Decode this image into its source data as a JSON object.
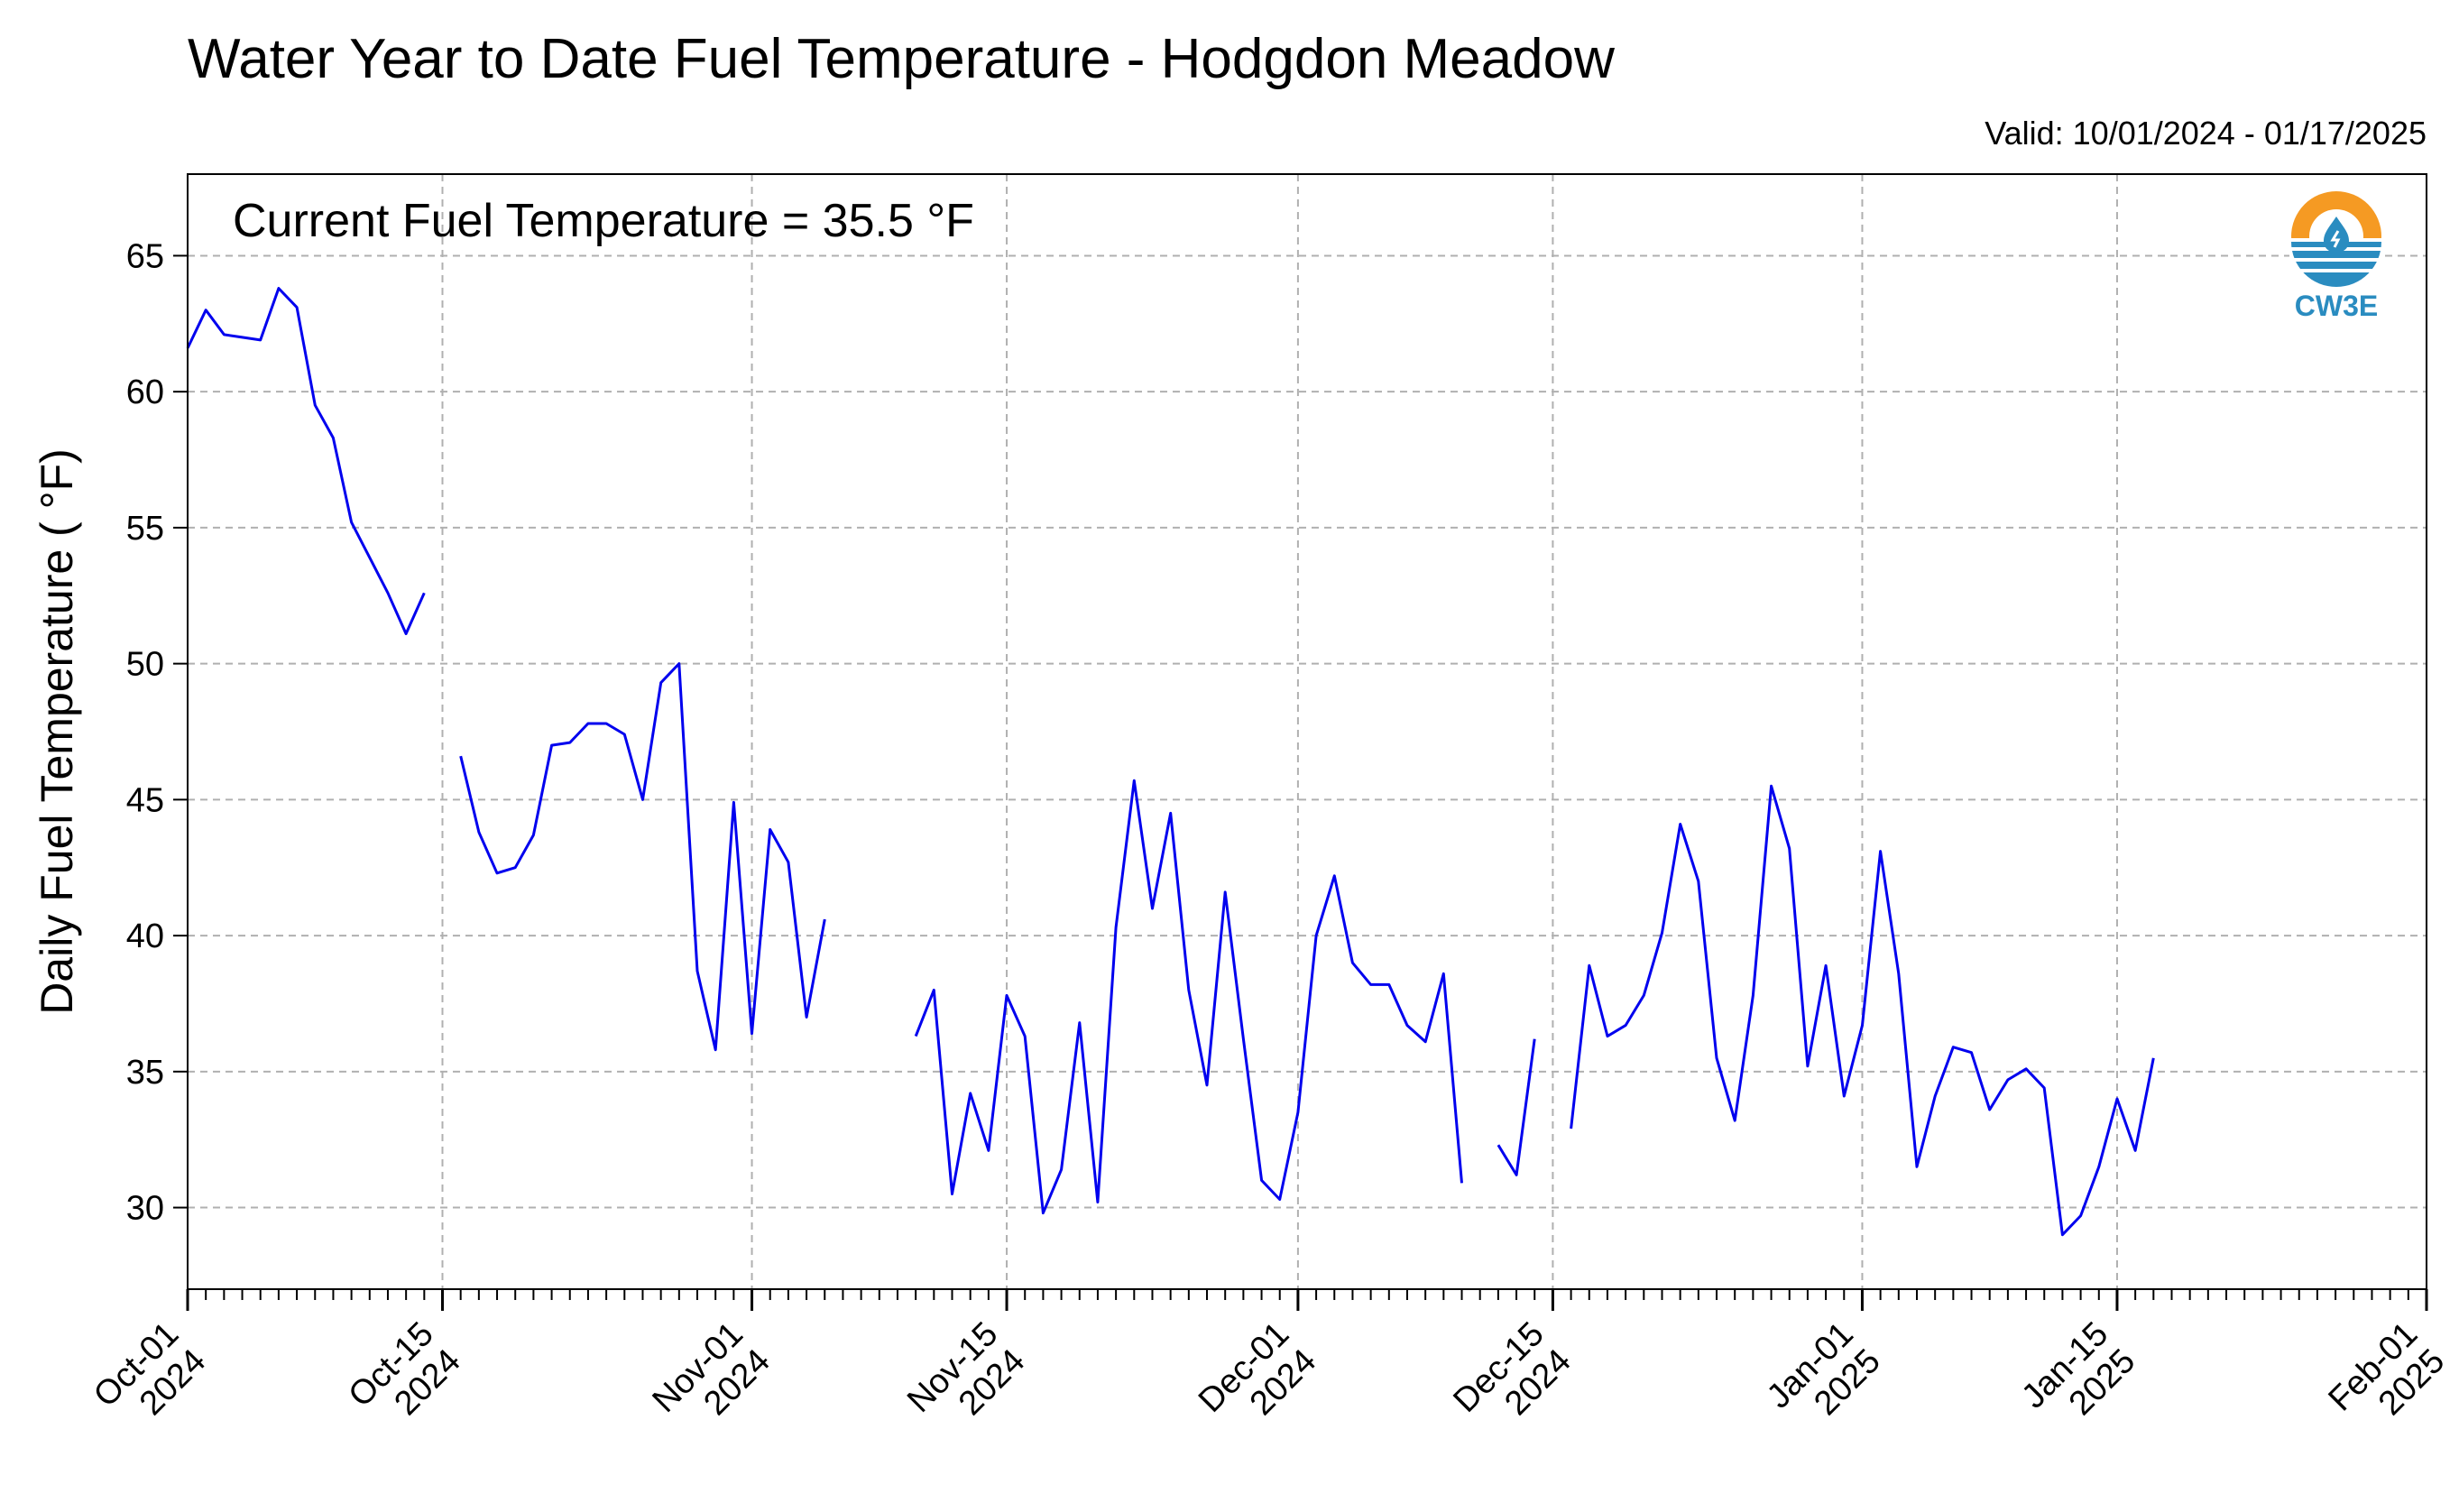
{
  "chart_data": {
    "type": "line",
    "title": "Water Year to Date Fuel Temperature - Hodgdon Meadow",
    "subtitle": "Valid: 10/01/2024 - 01/17/2025",
    "annotation": "Current Fuel Temperature = 35.5  °F",
    "ylabel": "Daily Fuel Temperature ( °F)",
    "xlabel": "",
    "ylim": [
      27,
      68
    ],
    "xlim": [
      "2024-10-01",
      "2025-02-01"
    ],
    "grid": true,
    "line_color": "#0000ee",
    "yticks": [
      30,
      35,
      40,
      45,
      50,
      55,
      60,
      65
    ],
    "xticks": [
      {
        "date": "2024-10-01",
        "line1": "Oct-01",
        "line2": "2024"
      },
      {
        "date": "2024-10-15",
        "line1": "Oct-15",
        "line2": "2024"
      },
      {
        "date": "2024-11-01",
        "line1": "Nov-01",
        "line2": "2024"
      },
      {
        "date": "2024-11-15",
        "line1": "Nov-15",
        "line2": "2024"
      },
      {
        "date": "2024-12-01",
        "line1": "Dec-01",
        "line2": "2024"
      },
      {
        "date": "2024-12-15",
        "line1": "Dec-15",
        "line2": "2024"
      },
      {
        "date": "2025-01-01",
        "line1": "Jan-01",
        "line2": "2025"
      },
      {
        "date": "2025-01-15",
        "line1": "Jan-15",
        "line2": "2025"
      },
      {
        "date": "2025-02-01",
        "line1": "Feb-01",
        "line2": "2025"
      }
    ],
    "segments": [
      {
        "start": "2024-10-01",
        "values": [
          61.6,
          63.0,
          62.1,
          62.0,
          61.9,
          63.8,
          63.1,
          59.5,
          58.3,
          55.2,
          53.9,
          52.6,
          51.1,
          52.6
        ]
      },
      {
        "start": "2024-10-16",
        "values": [
          46.6,
          43.8,
          42.3,
          42.5,
          43.7,
          47.0,
          47.1,
          47.8,
          47.8,
          47.4,
          45.0,
          49.3,
          50.0,
          38.7,
          35.8,
          44.9,
          36.4,
          43.9,
          42.7,
          37.0,
          40.6
        ]
      },
      {
        "start": "2024-11-10",
        "values": [
          36.3,
          38.0,
          30.5,
          34.2,
          32.1,
          37.8,
          36.3,
          29.8,
          31.4,
          36.8,
          30.2,
          40.3,
          45.7,
          41.0,
          44.5,
          38.0,
          34.5,
          41.6,
          36.2,
          31.0,
          30.3,
          33.5,
          40.0,
          42.2,
          39.0,
          38.2,
          38.2,
          36.7,
          36.1,
          38.6,
          30.9
        ]
      },
      {
        "start": "2024-12-12",
        "values": [
          32.3,
          31.2,
          36.2
        ]
      },
      {
        "start": "2024-12-16",
        "values": [
          32.9,
          38.9,
          36.3,
          36.7,
          37.8,
          40.1,
          44.1,
          42.0,
          35.5,
          33.2,
          37.8,
          45.5,
          43.2,
          35.2,
          38.9,
          34.1,
          36.7,
          43.1,
          38.6,
          31.5,
          34.1,
          35.9,
          35.7,
          33.6,
          34.7,
          35.1,
          34.4,
          29.0,
          29.7,
          31.5,
          34.0,
          32.1,
          35.5
        ]
      }
    ]
  },
  "logo": {
    "name": "CW3E",
    "colors": {
      "orange": "#f59a23",
      "blue": "#2a8cc0"
    }
  }
}
